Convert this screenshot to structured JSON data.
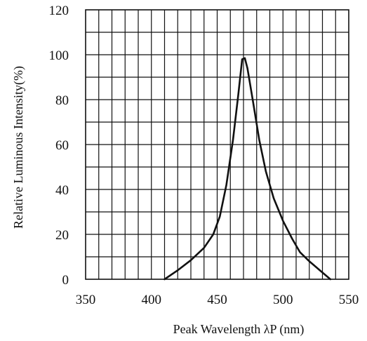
{
  "chart_data": {
    "type": "line",
    "title": "",
    "xlabel": "Peak Wavelength λP (nm)",
    "ylabel": "Relative Luminous Intensity(%)",
    "xlim": [
      350,
      550
    ],
    "ylim": [
      0,
      120
    ],
    "xticks": [
      350,
      400,
      450,
      500,
      550
    ],
    "yticks": [
      0,
      20,
      40,
      60,
      80,
      100,
      120
    ],
    "grid": true,
    "series": [
      {
        "values": [
          {
            "x": 410,
            "y": 0
          },
          {
            "x": 420,
            "y": 4
          },
          {
            "x": 430,
            "y": 8.5
          },
          {
            "x": 440,
            "y": 14
          },
          {
            "x": 447,
            "y": 20
          },
          {
            "x": 452,
            "y": 28
          },
          {
            "x": 457,
            "y": 42
          },
          {
            "x": 462,
            "y": 62
          },
          {
            "x": 466,
            "y": 82
          },
          {
            "x": 469,
            "y": 98
          },
          {
            "x": 471,
            "y": 98.5
          },
          {
            "x": 473,
            "y": 94
          },
          {
            "x": 477,
            "y": 80
          },
          {
            "x": 482,
            "y": 62
          },
          {
            "x": 487,
            "y": 48
          },
          {
            "x": 493,
            "y": 36
          },
          {
            "x": 500,
            "y": 26
          },
          {
            "x": 507,
            "y": 18
          },
          {
            "x": 513,
            "y": 12
          },
          {
            "x": 520,
            "y": 8
          },
          {
            "x": 528,
            "y": 4
          },
          {
            "x": 536,
            "y": 0
          }
        ]
      }
    ]
  }
}
